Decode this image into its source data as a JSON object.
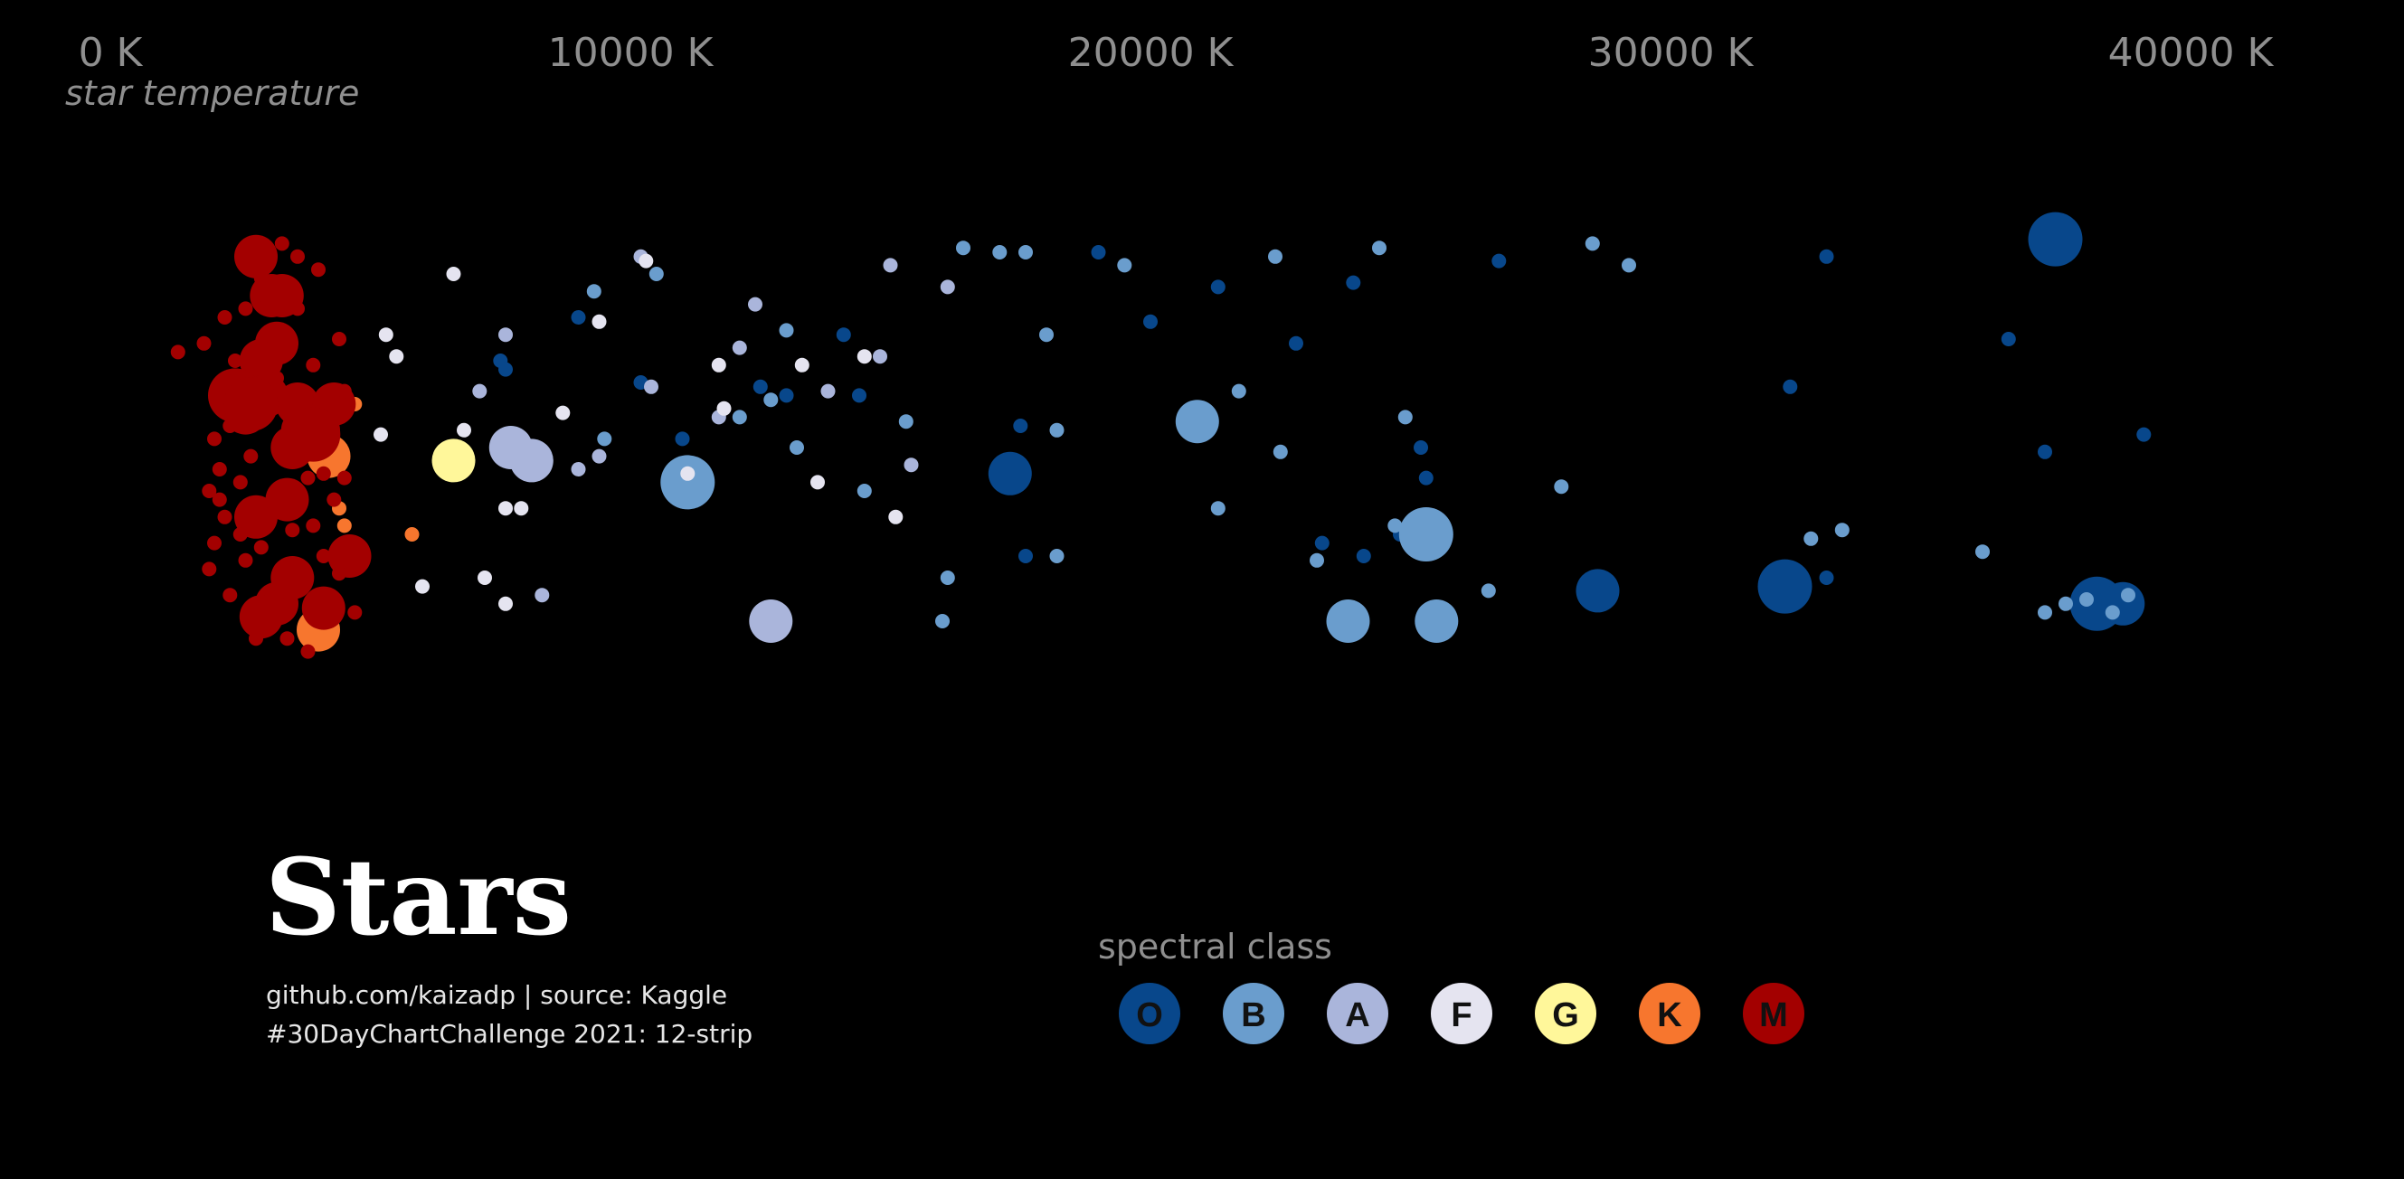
{
  "chart_data": {
    "type": "scatter",
    "title": "Stars",
    "caption_lines": [
      "github.com/kaizadp | source: Kaggle",
      "#30DayChartChallenge 2021: 12-strip"
    ],
    "xlabel": "star temperature",
    "x_ticks": [
      "0 K",
      "10000 K",
      "20000 K",
      "30000 K",
      "40000 K"
    ],
    "x_tick_values": [
      0,
      10000,
      20000,
      30000,
      40000
    ],
    "xlim": [
      0,
      40000
    ],
    "y_meaning": "random jitter (strip plot)",
    "legend_title": "spectral class",
    "legend_position": "bottom",
    "classes": [
      {
        "label": "O",
        "color": "#08478b"
      },
      {
        "label": "B",
        "color": "#6a9dcd"
      },
      {
        "label": "A",
        "color": "#aab5db"
      },
      {
        "label": "F",
        "color": "#e5e4f0"
      },
      {
        "label": "G",
        "color": "#fff79a"
      },
      {
        "label": "K",
        "color": "#f7762e"
      },
      {
        "label": "M",
        "color": "#a30000"
      }
    ],
    "series": [
      {
        "name": "O",
        "points": [
          [
            7500,
            0.3,
            "s"
          ],
          [
            7600,
            0.32,
            "s"
          ],
          [
            9000,
            0.2,
            "s"
          ],
          [
            10200,
            0.35,
            "s"
          ],
          [
            11000,
            0.48,
            "s"
          ],
          [
            12500,
            0.36,
            "s"
          ],
          [
            13000,
            0.38,
            "s"
          ],
          [
            14100,
            0.24,
            "s"
          ],
          [
            14400,
            0.38,
            "s"
          ],
          [
            17300,
            0.56,
            "m"
          ],
          [
            17600,
            0.75,
            "s"
          ],
          [
            17500,
            0.45,
            "s"
          ],
          [
            19000,
            0.05,
            "s"
          ],
          [
            20000,
            0.21,
            "s"
          ],
          [
            21300,
            0.13,
            "s"
          ],
          [
            22800,
            0.26,
            "s"
          ],
          [
            23300,
            0.72,
            "s"
          ],
          [
            23900,
            0.12,
            "s"
          ],
          [
            24100,
            0.75,
            "s"
          ],
          [
            24800,
            0.7,
            "s"
          ],
          [
            25200,
            0.5,
            "s"
          ],
          [
            25300,
            0.57,
            "s"
          ],
          [
            26700,
            0.07,
            "s"
          ],
          [
            28600,
            0.83,
            "m"
          ],
          [
            32300,
            0.82,
            "s"
          ],
          [
            32300,
            0.36,
            "s"
          ],
          [
            32200,
            0.82,
            "l"
          ],
          [
            33000,
            0.06,
            "s"
          ],
          [
            33000,
            0.8,
            "s"
          ],
          [
            36500,
            0.25,
            "s"
          ],
          [
            37200,
            0.51,
            "s"
          ],
          [
            37400,
            0.02,
            "l"
          ],
          [
            38200,
            0.86,
            "l"
          ],
          [
            38700,
            0.86,
            "m"
          ],
          [
            39100,
            0.47,
            "s"
          ]
        ]
      },
      {
        "name": "B",
        "points": [
          [
            9300,
            0.14,
            "s"
          ],
          [
            9500,
            0.48,
            "s"
          ],
          [
            10500,
            0.1,
            "s"
          ],
          [
            11100,
            0.58,
            "l"
          ],
          [
            12100,
            0.43,
            "s"
          ],
          [
            12700,
            0.39,
            "s"
          ],
          [
            13000,
            0.23,
            "s"
          ],
          [
            13200,
            0.5,
            "s"
          ],
          [
            14500,
            0.6,
            "s"
          ],
          [
            15300,
            0.44,
            "s"
          ],
          [
            16100,
            0.8,
            "s"
          ],
          [
            16400,
            0.04,
            "s"
          ],
          [
            17100,
            0.05,
            "s"
          ],
          [
            17600,
            0.05,
            "s"
          ],
          [
            18000,
            0.24,
            "s"
          ],
          [
            18200,
            0.46,
            "s"
          ],
          [
            18200,
            0.75,
            "s"
          ],
          [
            19500,
            0.08,
            "s"
          ],
          [
            20900,
            0.44,
            "m"
          ],
          [
            21300,
            0.64,
            "s"
          ],
          [
            21700,
            0.37,
            "s"
          ],
          [
            22400,
            0.06,
            "s"
          ],
          [
            22500,
            0.51,
            "s"
          ],
          [
            23200,
            0.76,
            "s"
          ],
          [
            23800,
            0.9,
            "m"
          ],
          [
            24700,
            0.68,
            "s"
          ],
          [
            24900,
            0.43,
            "s"
          ],
          [
            25300,
            0.7,
            "l"
          ],
          [
            25500,
            0.9,
            "m"
          ],
          [
            26500,
            0.83,
            "s"
          ],
          [
            27900,
            0.59,
            "s"
          ],
          [
            28500,
            0.03,
            "s"
          ],
          [
            29200,
            0.08,
            "s"
          ],
          [
            32700,
            0.71,
            "s"
          ],
          [
            33300,
            0.69,
            "s"
          ],
          [
            36000,
            0.74,
            "s"
          ],
          [
            37200,
            0.88,
            "s"
          ],
          [
            37600,
            0.86,
            "s"
          ],
          [
            38000,
            0.85,
            "s"
          ],
          [
            38500,
            0.88,
            "s"
          ],
          [
            38800,
            0.84,
            "s"
          ],
          [
            24400,
            0.04,
            "s"
          ],
          [
            20800,
            0.42,
            "s"
          ],
          [
            16000,
            0.9,
            "s"
          ]
        ]
      },
      {
        "name": "A",
        "points": [
          [
            7700,
            0.5,
            "m"
          ],
          [
            7600,
            0.24,
            "s"
          ],
          [
            8100,
            0.53,
            "m"
          ],
          [
            8300,
            0.84,
            "s"
          ],
          [
            9000,
            0.55,
            "s"
          ],
          [
            10400,
            0.36,
            "s"
          ],
          [
            12700,
            0.9,
            "m"
          ],
          [
            11700,
            0.43,
            "s"
          ],
          [
            12400,
            0.17,
            "s"
          ],
          [
            13800,
            0.37,
            "s"
          ],
          [
            15000,
            0.08,
            "s"
          ],
          [
            15400,
            0.54,
            "s"
          ],
          [
            7100,
            0.37,
            "s"
          ],
          [
            9400,
            0.52,
            "s"
          ],
          [
            12100,
            0.27,
            "s"
          ],
          [
            14800,
            0.29,
            "s"
          ],
          [
            16100,
            0.13,
            "s"
          ],
          [
            10200,
            0.06,
            "s"
          ]
        ]
      },
      {
        "name": "F",
        "points": [
          [
            5300,
            0.24,
            "s"
          ],
          [
            5500,
            0.29,
            "s"
          ],
          [
            6600,
            0.1,
            "s"
          ],
          [
            6800,
            0.46,
            "s"
          ],
          [
            7600,
            0.86,
            "s"
          ],
          [
            7200,
            0.8,
            "s"
          ],
          [
            7600,
            0.64,
            "s"
          ],
          [
            7900,
            0.64,
            "s"
          ],
          [
            8700,
            0.42,
            "s"
          ],
          [
            9400,
            0.21,
            "s"
          ],
          [
            10300,
            0.07,
            "s"
          ],
          [
            11100,
            0.56,
            "s"
          ],
          [
            11700,
            0.31,
            "s"
          ],
          [
            11800,
            0.41,
            "s"
          ],
          [
            13300,
            0.31,
            "s"
          ],
          [
            13600,
            0.58,
            "s"
          ],
          [
            14500,
            0.29,
            "s"
          ],
          [
            15100,
            0.66,
            "s"
          ],
          [
            5200,
            0.47,
            "s"
          ],
          [
            6000,
            0.82,
            "s"
          ]
        ]
      },
      {
        "name": "G",
        "points": [
          [
            6600,
            0.53,
            "m"
          ]
        ]
      },
      {
        "name": "K",
        "points": [
          [
            4200,
            0.52,
            "m"
          ],
          [
            4000,
            0.92,
            "m"
          ],
          [
            4500,
            0.68,
            "s"
          ],
          [
            4400,
            0.64,
            "s"
          ],
          [
            4700,
            0.4,
            "s"
          ],
          [
            5800,
            0.7,
            "s"
          ],
          [
            4100,
            0.54,
            "s"
          ]
        ]
      },
      {
        "name": "M",
        "points": [
          [
            2800,
            0.06,
            "m"
          ],
          [
            3100,
            0.15,
            "m"
          ],
          [
            3300,
            0.15,
            "m"
          ],
          [
            3200,
            0.26,
            "m"
          ],
          [
            2900,
            0.3,
            "m"
          ],
          [
            3000,
            0.38,
            "m"
          ],
          [
            2600,
            0.42,
            "m"
          ],
          [
            3600,
            0.4,
            "m"
          ],
          [
            4300,
            0.4,
            "m"
          ],
          [
            3500,
            0.5,
            "m"
          ],
          [
            3700,
            0.46,
            "m"
          ],
          [
            4000,
            0.46,
            "m"
          ],
          [
            2800,
            0.66,
            "m"
          ],
          [
            3400,
            0.62,
            "m"
          ],
          [
            4600,
            0.75,
            "m"
          ],
          [
            3200,
            0.86,
            "m"
          ],
          [
            2900,
            0.89,
            "m"
          ],
          [
            4100,
            0.87,
            "m"
          ],
          [
            3500,
            0.8,
            "m"
          ],
          [
            2400,
            0.38,
            "l"
          ],
          [
            3900,
            0.47,
            "l"
          ],
          [
            2700,
            0.4,
            "l"
          ],
          [
            3800,
            0.57,
            "s"
          ],
          [
            3000,
            0.24,
            "s"
          ],
          [
            2200,
            0.2,
            "s"
          ],
          [
            1800,
            0.26,
            "s"
          ],
          [
            1300,
            0.28,
            "s"
          ],
          [
            2600,
            0.18,
            "s"
          ],
          [
            2900,
            0.11,
            "s"
          ],
          [
            3300,
            0.03,
            "s"
          ],
          [
            3600,
            0.06,
            "s"
          ],
          [
            4400,
            0.25,
            "s"
          ],
          [
            4500,
            0.37,
            "s"
          ],
          [
            3200,
            0.34,
            "s"
          ],
          [
            2700,
            0.52,
            "s"
          ],
          [
            2100,
            0.55,
            "s"
          ],
          [
            2200,
            0.66,
            "s"
          ],
          [
            2000,
            0.72,
            "s"
          ],
          [
            1900,
            0.78,
            "s"
          ],
          [
            2300,
            0.84,
            "s"
          ],
          [
            2100,
            0.62,
            "s"
          ],
          [
            2500,
            0.7,
            "s"
          ],
          [
            2600,
            0.76,
            "s"
          ],
          [
            2900,
            0.73,
            "s"
          ],
          [
            3500,
            0.69,
            "s"
          ],
          [
            4100,
            0.75,
            "s"
          ],
          [
            4300,
            0.62,
            "s"
          ],
          [
            3900,
            0.68,
            "s"
          ],
          [
            4400,
            0.79,
            "s"
          ],
          [
            4100,
            0.56,
            "s"
          ],
          [
            4500,
            0.57,
            "s"
          ],
          [
            2300,
            0.45,
            "s"
          ],
          [
            2500,
            0.58,
            "s"
          ],
          [
            1900,
            0.6,
            "s"
          ],
          [
            2000,
            0.48,
            "s"
          ],
          [
            3700,
            0.81,
            "s"
          ],
          [
            3300,
            0.83,
            "s"
          ],
          [
            4700,
            0.88,
            "s"
          ],
          [
            2400,
            0.3,
            "s"
          ],
          [
            3600,
            0.18,
            "s"
          ],
          [
            3900,
            0.31,
            "s"
          ],
          [
            4000,
            0.09,
            "s"
          ],
          [
            3800,
            0.97,
            "s"
          ],
          [
            3400,
            0.94,
            "s"
          ],
          [
            2800,
            0.94,
            "s"
          ]
        ]
      }
    ]
  }
}
